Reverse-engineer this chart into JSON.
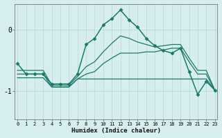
{
  "title": "",
  "xlabel": "Humidex (Indice chaleur)",
  "background_color": "#d6eeee",
  "grid_color": "#c0dcdc",
  "line_color": "#1a7a6a",
  "x_ticks": [
    0,
    1,
    2,
    3,
    4,
    5,
    6,
    7,
    8,
    9,
    10,
    11,
    12,
    13,
    14,
    15,
    16,
    17,
    18,
    19,
    20,
    21,
    22,
    23
  ],
  "y_ticks": [
    -1,
    0
  ],
  "ylim": [
    -1.45,
    0.42
  ],
  "xlim": [
    -0.3,
    23.3
  ],
  "series": [
    {
      "x": [
        0,
        1,
        2,
        3,
        4,
        5,
        6,
        7,
        8,
        9,
        10,
        11,
        12,
        13,
        14,
        15,
        16,
        17,
        18,
        19,
        20,
        21,
        22,
        23
      ],
      "y": [
        -0.55,
        -0.72,
        -0.72,
        -0.72,
        -0.88,
        -0.88,
        -0.88,
        -0.72,
        -0.24,
        -0.14,
        0.08,
        0.18,
        0.32,
        0.16,
        0.04,
        -0.14,
        -0.26,
        -0.34,
        -0.38,
        -0.3,
        -0.68,
        -1.05,
        -0.84,
        -0.98
      ],
      "marker": "D",
      "markersize": 2.5,
      "linewidth": 1.1,
      "has_marker": true
    },
    {
      "x": [
        0,
        1,
        2,
        3,
        4,
        5,
        6,
        7,
        8,
        9,
        10,
        11,
        12,
        13,
        14,
        15,
        16,
        17,
        18,
        19,
        20,
        21,
        22,
        23
      ],
      "y": [
        -0.78,
        -0.78,
        -0.78,
        -0.78,
        -0.93,
        -0.93,
        -0.93,
        -0.8,
        -0.8,
        -0.8,
        -0.8,
        -0.8,
        -0.8,
        -0.8,
        -0.8,
        -0.8,
        -0.8,
        -0.8,
        -0.8,
        -0.8,
        -0.8,
        -0.8,
        -0.8,
        -0.98
      ],
      "marker": null,
      "markersize": 0,
      "linewidth": 0.9,
      "has_marker": false
    },
    {
      "x": [
        0,
        1,
        2,
        3,
        4,
        5,
        6,
        7,
        8,
        9,
        10,
        11,
        12,
        13,
        14,
        15,
        16,
        17,
        18,
        19,
        20,
        21,
        22,
        23
      ],
      "y": [
        -0.72,
        -0.72,
        -0.72,
        -0.72,
        -0.93,
        -0.93,
        -0.93,
        -0.8,
        -0.72,
        -0.68,
        -0.55,
        -0.46,
        -0.38,
        -0.38,
        -0.38,
        -0.36,
        -0.36,
        -0.33,
        -0.3,
        -0.3,
        -0.52,
        -0.72,
        -0.72,
        -0.98
      ],
      "marker": null,
      "markersize": 0,
      "linewidth": 0.9,
      "has_marker": false
    },
    {
      "x": [
        0,
        1,
        2,
        3,
        4,
        5,
        6,
        7,
        8,
        9,
        10,
        11,
        12,
        13,
        14,
        15,
        16,
        17,
        18,
        19,
        20,
        21,
        22,
        23
      ],
      "y": [
        -0.66,
        -0.66,
        -0.66,
        -0.66,
        -0.9,
        -0.9,
        -0.9,
        -0.76,
        -0.6,
        -0.52,
        -0.36,
        -0.22,
        -0.1,
        -0.14,
        -0.2,
        -0.24,
        -0.28,
        -0.26,
        -0.24,
        -0.24,
        -0.46,
        -0.66,
        -0.66,
        -0.98
      ],
      "marker": null,
      "markersize": 0,
      "linewidth": 0.9,
      "has_marker": false
    }
  ]
}
